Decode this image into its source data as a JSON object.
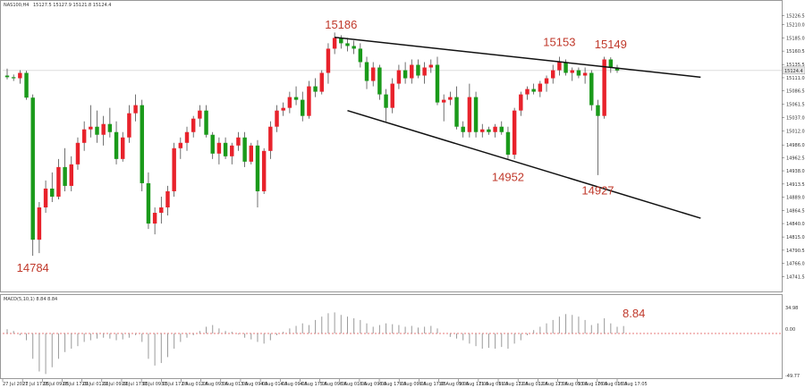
{
  "header": {
    "symbol": "NAS100,H4",
    "ohlc": "15127.5 15127.9 15121.8 15124.4"
  },
  "macd": {
    "label": "MACD(5,10,1) 8.84 8.84",
    "value_label": "8.84",
    "axis_labels": [
      "34.98",
      "0.00",
      "-49.77"
    ]
  },
  "colors": {
    "bull": "#e8222b",
    "bear": "#1a9a1a",
    "line": "#111111",
    "annotation": "#c0392b",
    "zero_line": "#e05050"
  },
  "chart_data": {
    "type": "candlestick",
    "title": "NAS100,H4",
    "ylim": [
      14720.5,
      15235.5
    ],
    "y_ticks": [
      15226.5,
      15210.0,
      15185.0,
      15160.5,
      15135.5,
      15111.0,
      15086.5,
      15061.5,
      15037.0,
      15012.0,
      14986.0,
      14962.5,
      14938.0,
      14913.5,
      14889.0,
      14864.5,
      14840.0,
      14815.0,
      14790.5,
      14766.0,
      14741.5
    ],
    "current_price": 15124.4,
    "x_tick_labels": [
      "27 Jul 2021",
      "27 Jul 17:05",
      "28 Jul 09:05",
      "28 Jul 17:05",
      "29 Jul 01:05",
      "29 Jul 09:05",
      "29 Jul 17:05",
      "30 Jul 09:05",
      "30 Jul 17:05",
      "2 Aug 01:05",
      "2 Aug 09:05",
      "3 Aug 01:05",
      "3 Aug 09:05",
      "4 Aug 01:05",
      "4 Aug 09:05",
      "4 Aug 17:05",
      "5 Aug 09:05",
      "6 Aug 01:05",
      "6 Aug 09:05",
      "6 Aug 17:05",
      "9 Aug 09:05",
      "9 Aug 17:05",
      "10 Aug 09:05",
      "10 Aug 17:05",
      "11 Aug 09:05",
      "11 Aug 17:05",
      "12 Aug 01:05",
      "12 Aug 17:05",
      "13 Aug 09:05",
      "13 Aug 17:05",
      "16 Aug 01:05",
      "16 Aug 17:05"
    ],
    "candles": [
      [
        15115,
        15128,
        15108,
        15112
      ],
      [
        15112,
        15117,
        15105,
        15110
      ],
      [
        15110,
        15125,
        15100,
        15120
      ],
      [
        15120,
        15124,
        15070,
        15074
      ],
      [
        15074,
        15080,
        14780,
        14810
      ],
      [
        14810,
        14880,
        14785,
        14870
      ],
      [
        14870,
        14920,
        14860,
        14905
      ],
      [
        14905,
        14935,
        14880,
        14890
      ],
      [
        14890,
        14960,
        14885,
        14945
      ],
      [
        14945,
        14980,
        14900,
        14910
      ],
      [
        14910,
        14965,
        14900,
        14950
      ],
      [
        14950,
        15000,
        14940,
        14990
      ],
      [
        14990,
        15030,
        14975,
        15015
      ],
      [
        15015,
        15060,
        15000,
        15020
      ],
      [
        15020,
        15050,
        14990,
        15005
      ],
      [
        15005,
        15040,
        14985,
        15025
      ],
      [
        15025,
        15055,
        15000,
        15010
      ],
      [
        15010,
        15030,
        14950,
        14960
      ],
      [
        14960,
        15010,
        14955,
        15000
      ],
      [
        15000,
        15060,
        14990,
        15045
      ],
      [
        15045,
        15080,
        15030,
        15060
      ],
      [
        15060,
        15070,
        14900,
        14915
      ],
      [
        14915,
        14935,
        14830,
        14840
      ],
      [
        14840,
        14870,
        14820,
        14860
      ],
      [
        14860,
        14890,
        14840,
        14870
      ],
      [
        14870,
        14910,
        14855,
        14900
      ],
      [
        14900,
        14990,
        14890,
        14980
      ],
      [
        14980,
        15000,
        14960,
        14990
      ],
      [
        14990,
        15020,
        14975,
        15010
      ],
      [
        15010,
        15040,
        15000,
        15035
      ],
      [
        15035,
        15060,
        15020,
        15050
      ],
      [
        15050,
        15060,
        15000,
        15005
      ],
      [
        15005,
        15010,
        14960,
        14970
      ],
      [
        14970,
        15000,
        14950,
        14990
      ],
      [
        14990,
        15000,
        14960,
        14965
      ],
      [
        14965,
        14990,
        14950,
        14985
      ],
      [
        14985,
        15010,
        14975,
        15000
      ],
      [
        15000,
        15010,
        14945,
        14955
      ],
      [
        14955,
        14990,
        14950,
        14985
      ],
      [
        14985,
        14995,
        14870,
        14900
      ],
      [
        14900,
        14980,
        14895,
        14975
      ],
      [
        14975,
        15030,
        14960,
        15020
      ],
      [
        15020,
        15060,
        15010,
        15050
      ],
      [
        15050,
        15065,
        15040,
        15055
      ],
      [
        15055,
        15085,
        15045,
        15075
      ],
      [
        15075,
        15095,
        15060,
        15070
      ],
      [
        15070,
        15085,
        15030,
        15040
      ],
      [
        15040,
        15105,
        15035,
        15095
      ],
      [
        15095,
        15110,
        15075,
        15085
      ],
      [
        15085,
        15125,
        15080,
        15120
      ],
      [
        15120,
        15175,
        15100,
        15165
      ],
      [
        15165,
        15195,
        15155,
        15185
      ],
      [
        15185,
        15190,
        15165,
        15175
      ],
      [
        15175,
        15185,
        15160,
        15170
      ],
      [
        15170,
        15180,
        15155,
        15165
      ],
      [
        15165,
        15175,
        15130,
        15140
      ],
      [
        15140,
        15150,
        15090,
        15105
      ],
      [
        15105,
        15140,
        15095,
        15130
      ],
      [
        15130,
        15135,
        15070,
        15080
      ],
      [
        15080,
        15090,
        15030,
        15055
      ],
      [
        15055,
        15110,
        15045,
        15100
      ],
      [
        15100,
        15135,
        15090,
        15125
      ],
      [
        15125,
        15140,
        15100,
        15110
      ],
      [
        15110,
        15145,
        15100,
        15135
      ],
      [
        15135,
        15145,
        15110,
        15115
      ],
      [
        15115,
        15140,
        15100,
        15130
      ],
      [
        15130,
        15145,
        15120,
        15135
      ],
      [
        15135,
        15150,
        15060,
        15065
      ],
      [
        15065,
        15080,
        15030,
        15070
      ],
      [
        15070,
        15085,
        15060,
        15075
      ],
      [
        15075,
        15095,
        15015,
        15020
      ],
      [
        15020,
        15030,
        15000,
        15010
      ],
      [
        15010,
        15100,
        15000,
        15075
      ],
      [
        15075,
        15085,
        15000,
        15010
      ],
      [
        15010,
        15025,
        15000,
        15015
      ],
      [
        15015,
        15020,
        15005,
        15010
      ],
      [
        15010,
        15025,
        15000,
        15020
      ],
      [
        15020,
        15030,
        15005,
        15010
      ],
      [
        15010,
        15020,
        14960,
        14968
      ],
      [
        14968,
        15055,
        14960,
        15050
      ],
      [
        15050,
        15085,
        15040,
        15080
      ],
      [
        15080,
        15095,
        15070,
        15090
      ],
      [
        15090,
        15100,
        15080,
        15085
      ],
      [
        15085,
        15105,
        15075,
        15100
      ],
      [
        15100,
        15115,
        15085,
        15110
      ],
      [
        15110,
        15135,
        15100,
        15125
      ],
      [
        15125,
        15150,
        15115,
        15140
      ],
      [
        15140,
        15145,
        15115,
        15120
      ],
      [
        15120,
        15130,
        15105,
        15125
      ],
      [
        15125,
        15130,
        15110,
        15115
      ],
      [
        15115,
        15130,
        15100,
        15120
      ],
      [
        15120,
        15125,
        15050,
        15060
      ],
      [
        15060,
        15070,
        14930,
        15040
      ],
      [
        15040,
        15150,
        15035,
        15145
      ],
      [
        15145,
        15149,
        15120,
        15130
      ],
      [
        15130,
        15135,
        15120,
        15124.4
      ]
    ],
    "annotations": [
      {
        "text": "15186",
        "candle": 52,
        "price": 15186,
        "pos": "above"
      },
      {
        "text": "15153",
        "candle": 86,
        "price": 15153,
        "pos": "above"
      },
      {
        "text": "15149",
        "candle": 94,
        "price": 15149,
        "pos": "above"
      },
      {
        "text": "14952",
        "candle": 78,
        "price": 14952,
        "pos": "below"
      },
      {
        "text": "14927",
        "candle": 92,
        "price": 14927,
        "pos": "below"
      },
      {
        "text": "14784",
        "candle": 4,
        "price": 14784,
        "pos": "below"
      }
    ],
    "trendlines": [
      {
        "name": "upper",
        "from": [
          51,
          15186
        ],
        "to": [
          108,
          15112
        ]
      },
      {
        "name": "lower",
        "from": [
          53,
          15050
        ],
        "to": [
          108,
          14850
        ]
      }
    ],
    "macd_ylim": [
      -49.77,
      34.98
    ],
    "macd_values": [
      5,
      3,
      -2,
      -8,
      -30,
      -45,
      -48,
      -40,
      -30,
      -22,
      -18,
      -15,
      -10,
      -8,
      -6,
      -5,
      -6,
      -8,
      -7,
      -5,
      -2,
      -10,
      -30,
      -38,
      -35,
      -28,
      -18,
      -10,
      -5,
      -2,
      3,
      8,
      10,
      6,
      3,
      2,
      -1,
      -5,
      -7,
      -10,
      -12,
      -8,
      -2,
      2,
      6,
      9,
      12,
      10,
      16,
      20,
      24,
      25,
      22,
      20,
      18,
      16,
      12,
      8,
      10,
      12,
      11,
      10,
      8,
      9,
      7,
      8,
      9,
      6,
      0,
      -4,
      -6,
      -8,
      -12,
      -15,
      -18,
      -17,
      -18,
      -16,
      -18,
      -12,
      -8,
      -2,
      4,
      8,
      12,
      16,
      20,
      23,
      22,
      20,
      16,
      10,
      12,
      18,
      12,
      8,
      8.84
    ]
  }
}
